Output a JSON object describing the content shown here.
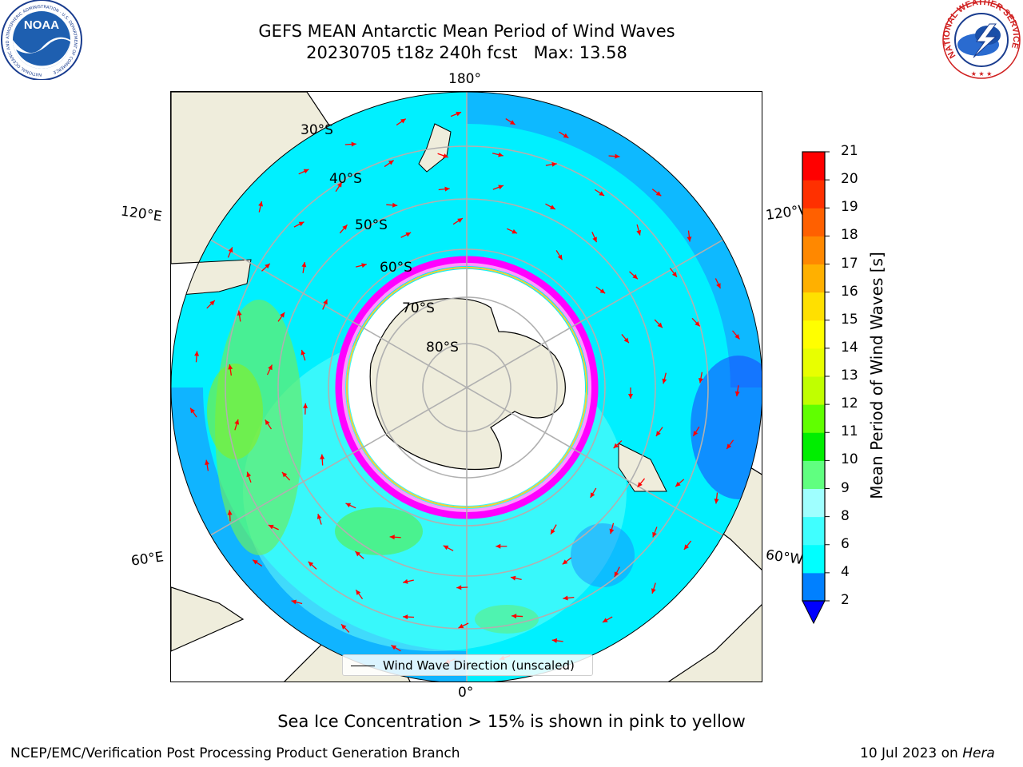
{
  "title": {
    "line1": "GEFS MEAN Antarctic Mean Period of Wind Waves",
    "line2": "20230705 t18z 240h fcst   Max: 13.58"
  },
  "logos": {
    "left": {
      "name": "noaa-logo",
      "text": "NOAA",
      "ring_text": "NATIONAL OCEANIC AND ATMOSPHERIC ADMINISTRATION · U.S. DEPARTMENT OF COMMERCE"
    },
    "right": {
      "name": "nws-logo",
      "ring_text": "NATIONAL WEATHER SERVICE"
    }
  },
  "map": {
    "projection": "south-polar-stereographic",
    "longitude_labels": {
      "top": "180°",
      "bottom": "0°",
      "upper_left": "120°E",
      "upper_right": "120°W",
      "lower_left": "60°E",
      "lower_right": "60°W"
    },
    "latitude_labels": [
      "30°S",
      "40°S",
      "50°S",
      "60°S",
      "70°S",
      "80°S"
    ],
    "legend_label": "Wind Wave Direction (unscaled)",
    "arrow_color": "#ff0000",
    "land_color": "#efeddc",
    "ice_edge_colors": [
      "#ff00ff",
      "#ff99ff",
      "#ffcc33"
    ],
    "grid_color": "#b0b0b0"
  },
  "colorbar": {
    "title": "Mean Period of Wind Waves [s]",
    "ticks": [
      "2",
      "4",
      "6",
      "8",
      "9",
      "10",
      "11",
      "12",
      "13",
      "14",
      "15",
      "16",
      "17",
      "18",
      "19",
      "20",
      "21"
    ],
    "extend": "min",
    "under_color": "#0000ff",
    "colors": [
      "#0080ff",
      "#00ffff",
      "#40ffff",
      "#9fffff",
      "#60ff80",
      "#00ee00",
      "#60ff00",
      "#c0ff00",
      "#e8ff00",
      "#ffff00",
      "#ffe000",
      "#ffb000",
      "#ff8800",
      "#ff6000",
      "#ff3000",
      "#ff0000"
    ]
  },
  "footer": {
    "sea_ice_note": "Sea Ice Concentration > 15% is shown in pink to yellow",
    "credit": "NCEP/EMC/Verification Post Processing Product Generation Branch",
    "date": "10 Jul 2023 on ",
    "host": "Hera"
  }
}
